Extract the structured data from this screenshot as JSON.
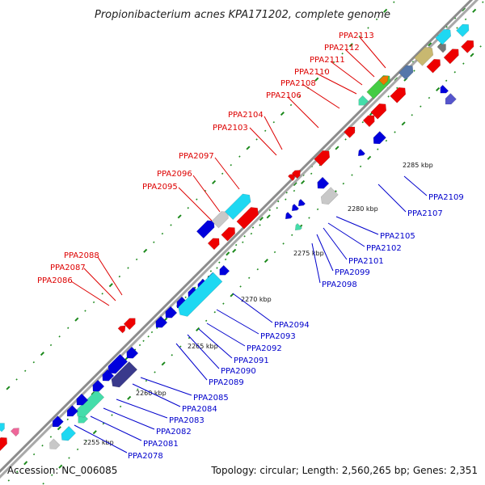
{
  "title": "Propionibacterium acnes KPA171202, complete genome",
  "accession": "Accession: NC_006085",
  "summary": "Topology: circular; Length: 2,560,265 bp; Genes: 2,351",
  "colors": {
    "forward_label": "#dd0000",
    "reverse_label": "#0000cc",
    "backbone": "#8c8c8c",
    "dots": "#1d8a1d"
  },
  "ticks": [
    "2255 kbp",
    "2260 kbp",
    "2265 kbp",
    "2270 kbp",
    "2275 kbp",
    "2280 kbp",
    "2285 kbp"
  ],
  "forward_genes": [
    "PPA2086",
    "PPA2087",
    "PPA2088",
    "PPA2095",
    "PPA2096",
    "PPA2097",
    "PPA2103",
    "PPA2104",
    "PPA2106",
    "PPA2108",
    "PPA2110",
    "PPA2111",
    "PPA2112",
    "PPA2113"
  ],
  "reverse_genes": [
    "PPA2078",
    "PPA2081",
    "PPA2082",
    "PPA2083",
    "PPA2084",
    "PPA2085",
    "PPA2089",
    "PPA2090",
    "PPA2091",
    "PPA2092",
    "PPA2093",
    "PPA2094",
    "PPA2098",
    "PPA2099",
    "PPA2101",
    "PPA2102",
    "PPA2105",
    "PPA2107",
    "PPA2109"
  ]
}
